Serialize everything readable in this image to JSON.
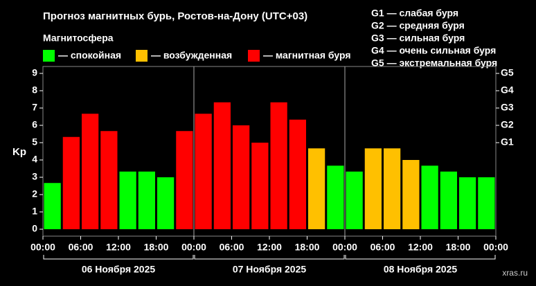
{
  "chart_data": {
    "type": "bar",
    "title": "Прогноз магнитных бурь, Ростов-на-Дону (UTC+03)",
    "legend_title": "Магнитосфера",
    "legend": [
      {
        "label": "— спокойная",
        "color": "#00ff00"
      },
      {
        "label": "— возбужденная",
        "color": "#ffc000"
      },
      {
        "label": "— магнитная буря",
        "color": "#ff0000"
      }
    ],
    "g_scale": [
      "G1 — слабая буря",
      "G2 — средняя буря",
      "G3 — сильная буря",
      "G4 — очень сильная буря",
      "G5 — экстремальная буря"
    ],
    "ylabel": "Kp",
    "categories": [
      null,
      null,
      null,
      null,
      null,
      null,
      null,
      null,
      null,
      null,
      null,
      null,
      null,
      null,
      null,
      null,
      null,
      null,
      null,
      null,
      null,
      null,
      null,
      null
    ],
    "values": [
      2.67,
      5.33,
      6.67,
      5.67,
      3.33,
      3.33,
      3,
      5.67,
      6.67,
      7.33,
      6,
      5,
      7.33,
      6.33,
      4.67,
      3.67,
      3.33,
      4.67,
      4.67,
      4,
      3.67,
      3.33,
      3,
      3
    ],
    "colors": [
      "#00ff00",
      "#ff0000",
      "#ff0000",
      "#ff0000",
      "#00ff00",
      "#00ff00",
      "#00ff00",
      "#ff0000",
      "#ff0000",
      "#ff0000",
      "#ff0000",
      "#ff0000",
      "#ff0000",
      "#ff0000",
      "#ffc000",
      "#00ff00",
      "#00ff00",
      "#ffc000",
      "#ffc000",
      "#ffc000",
      "#00ff00",
      "#00ff00",
      "#00ff00",
      "#00ff00"
    ],
    "ylim": [
      -0.4,
      9.4
    ],
    "yticks": [
      0,
      1,
      2,
      3,
      4,
      5,
      6,
      7,
      8,
      9
    ],
    "y2ticks": [
      {
        "value": 5,
        "label": "G1"
      },
      {
        "value": 6,
        "label": "G2"
      },
      {
        "value": 7,
        "label": "G3"
      },
      {
        "value": 8,
        "label": "G4"
      },
      {
        "value": 9,
        "label": "G5"
      }
    ],
    "xlim": [
      0,
      72
    ],
    "xticks": [
      {
        "value": 0,
        "label": "00:00"
      },
      {
        "value": 6,
        "label": "06:00"
      },
      {
        "value": 12,
        "label": "12:00"
      },
      {
        "value": 18,
        "label": "18:00"
      },
      {
        "value": 24,
        "label": "00:00"
      },
      {
        "value": 30,
        "label": "06:00"
      },
      {
        "value": 36,
        "label": "12:00"
      },
      {
        "value": 42,
        "label": "18:00"
      },
      {
        "value": 48,
        "label": "00:00"
      },
      {
        "value": 54,
        "label": "06:00"
      },
      {
        "value": 60,
        "label": "12:00"
      },
      {
        "value": 66,
        "label": "18:00"
      },
      {
        "value": 72,
        "label": "00:00"
      }
    ],
    "days": [
      {
        "start": 0,
        "end": 24,
        "label": "06 Ноября 2025"
      },
      {
        "start": 24,
        "end": 48,
        "label": "07 Ноября 2025"
      },
      {
        "start": 48,
        "end": 72,
        "label": "08 Ноября 2025"
      }
    ],
    "watermark": "xras.ru"
  }
}
